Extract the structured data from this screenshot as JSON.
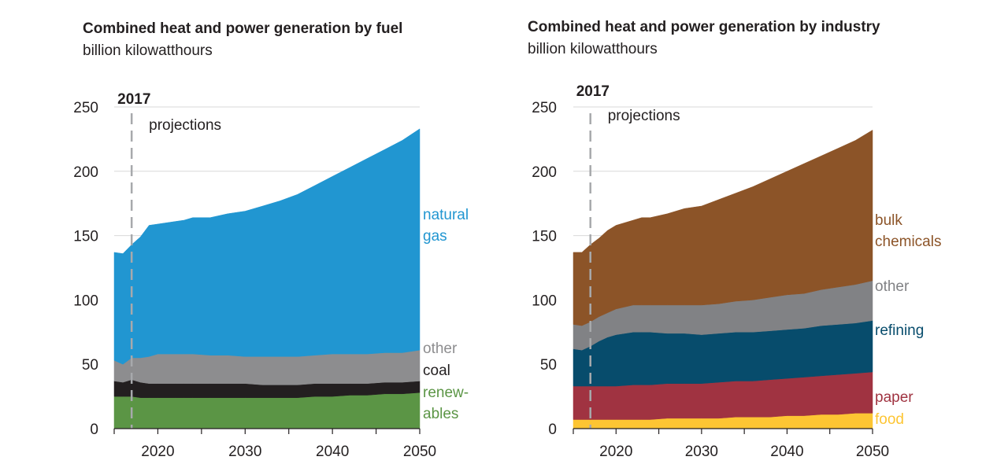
{
  "chart_data": [
    {
      "type": "area",
      "title": "Combined heat and power generation by fuel",
      "subtitle": "billion kilowatthours",
      "xlabel": "",
      "ylabel": "billion kilowatthours",
      "xlim": [
        2015,
        2050
      ],
      "ylim": [
        0,
        250
      ],
      "yticks": [
        0,
        50,
        100,
        150,
        200,
        250
      ],
      "xticks": [
        2020,
        2030,
        2040,
        2050
      ],
      "grid": true,
      "stacked": true,
      "marker_year": 2017,
      "marker_label": "2017",
      "projection_label": "projections",
      "x": [
        2015,
        2016,
        2017,
        2018,
        2019,
        2020,
        2022,
        2023,
        2024,
        2026,
        2028,
        2030,
        2032,
        2034,
        2036,
        2038,
        2040,
        2042,
        2044,
        2046,
        2048,
        2050
      ],
      "series": [
        {
          "name": "renewables",
          "label": [
            "renew-",
            "ables"
          ],
          "color": "#5b9545",
          "values": [
            25,
            25,
            25,
            24,
            24,
            24,
            24,
            24,
            24,
            24,
            24,
            24,
            24,
            24,
            24,
            25,
            25,
            26,
            26,
            27,
            27,
            28
          ]
        },
        {
          "name": "coal",
          "label": [
            "coal"
          ],
          "color": "#231f20",
          "values": [
            12,
            11,
            13,
            12,
            11,
            11,
            11,
            11,
            11,
            11,
            11,
            11,
            10,
            10,
            10,
            10,
            10,
            9,
            9,
            9,
            9,
            9
          ]
        },
        {
          "name": "other",
          "label": [
            "other"
          ],
          "color": "#8d8d8f",
          "values": [
            16,
            14,
            17,
            19,
            21,
            23,
            23,
            23,
            23,
            22,
            22,
            21,
            22,
            22,
            22,
            22,
            23,
            23,
            23,
            23,
            23,
            24
          ]
        },
        {
          "name": "natural gas",
          "label": [
            "natural",
            "gas"
          ],
          "color": "#2196d1",
          "values": [
            84,
            86,
            88,
            94,
            102,
            101,
            103,
            104,
            106,
            107,
            110,
            113,
            117,
            121,
            126,
            132,
            138,
            145,
            152,
            158,
            165,
            172
          ]
        }
      ],
      "label_colors": {
        "renewables": "#5b9545",
        "coal": "#231f20",
        "other": "#8d8d8f",
        "natural gas": "#2196d1"
      }
    },
    {
      "type": "area",
      "title": "Combined heat and power generation by industry",
      "subtitle": "billion kilowatthours",
      "xlabel": "",
      "ylabel": "billion kilowatthours",
      "xlim": [
        2015,
        2050
      ],
      "ylim": [
        0,
        250
      ],
      "yticks": [
        0,
        50,
        100,
        150,
        200,
        250
      ],
      "xticks": [
        2020,
        2030,
        2040,
        2050
      ],
      "grid": true,
      "stacked": true,
      "marker_year": 2017,
      "marker_label": "2017",
      "projection_label": "projections",
      "x": [
        2015,
        2016,
        2017,
        2018,
        2019,
        2020,
        2022,
        2023,
        2024,
        2026,
        2028,
        2030,
        2032,
        2034,
        2036,
        2038,
        2040,
        2042,
        2044,
        2046,
        2048,
        2050
      ],
      "series": [
        {
          "name": "food",
          "label": [
            "food"
          ],
          "color": "#fdc533",
          "values": [
            7,
            7,
            7,
            7,
            7,
            7,
            7,
            7,
            7,
            8,
            8,
            8,
            8,
            9,
            9,
            9,
            10,
            10,
            11,
            11,
            12,
            12
          ]
        },
        {
          "name": "paper",
          "label": [
            "paper"
          ],
          "color": "#a03341",
          "values": [
            26,
            26,
            26,
            26,
            26,
            26,
            27,
            27,
            27,
            27,
            27,
            27,
            28,
            28,
            28,
            29,
            29,
            30,
            30,
            31,
            31,
            32
          ]
        },
        {
          "name": "refining",
          "label": [
            "refining"
          ],
          "color": "#074c6c",
          "values": [
            29,
            28,
            31,
            35,
            38,
            40,
            41,
            41,
            41,
            39,
            39,
            38,
            38,
            38,
            38,
            38,
            38,
            38,
            39,
            39,
            39,
            40
          ]
        },
        {
          "name": "other",
          "label": [
            "other"
          ],
          "color": "#818285",
          "values": [
            19,
            19,
            19,
            19,
            19,
            20,
            21,
            21,
            21,
            22,
            22,
            23,
            23,
            24,
            25,
            26,
            27,
            27,
            28,
            29,
            30,
            31
          ]
        },
        {
          "name": "bulk chemicals",
          "label": [
            "bulk",
            "chemicals"
          ],
          "color": "#8c5428",
          "values": [
            56,
            57,
            60,
            61,
            64,
            65,
            66,
            68,
            68,
            71,
            75,
            77,
            81,
            84,
            88,
            92,
            96,
            101,
            104,
            108,
            112,
            117
          ]
        }
      ],
      "label_colors": {
        "food": "#fdc533",
        "paper": "#a03341",
        "refining": "#074c6c",
        "other": "#818285",
        "bulk chemicals": "#8c5428"
      }
    }
  ]
}
